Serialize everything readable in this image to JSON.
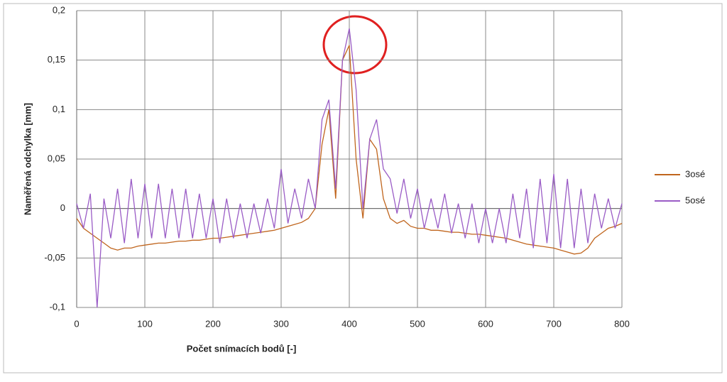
{
  "chart_data": {
    "type": "line",
    "y_label": "Naměřená odchylka  [mm]",
    "x_label": "Počet snímacích  bodů [-]",
    "x": [
      0,
      10,
      20,
      30,
      40,
      50,
      60,
      70,
      80,
      90,
      100,
      110,
      120,
      130,
      140,
      150,
      160,
      170,
      180,
      190,
      200,
      210,
      220,
      230,
      240,
      250,
      260,
      270,
      280,
      290,
      300,
      310,
      320,
      330,
      340,
      350,
      360,
      370,
      380,
      390,
      400,
      410,
      420,
      430,
      440,
      450,
      460,
      470,
      480,
      490,
      500,
      510,
      520,
      530,
      540,
      550,
      560,
      570,
      580,
      590,
      600,
      610,
      620,
      630,
      640,
      650,
      660,
      670,
      680,
      690,
      700,
      710,
      720,
      730,
      740,
      750,
      760,
      770,
      780,
      790,
      800
    ],
    "series": [
      {
        "name": "3osé",
        "color": "#c0651d",
        "values": [
          -0.01,
          -0.02,
          -0.025,
          -0.03,
          -0.035,
          -0.04,
          -0.042,
          -0.04,
          -0.04,
          -0.038,
          -0.037,
          -0.036,
          -0.035,
          -0.035,
          -0.034,
          -0.033,
          -0.033,
          -0.032,
          -0.032,
          -0.031,
          -0.03,
          -0.03,
          -0.029,
          -0.028,
          -0.027,
          -0.026,
          -0.025,
          -0.024,
          -0.023,
          -0.022,
          -0.02,
          -0.018,
          -0.016,
          -0.014,
          -0.01,
          0.0,
          0.065,
          0.1,
          0.01,
          0.15,
          0.165,
          0.05,
          -0.01,
          0.07,
          0.06,
          0.01,
          -0.01,
          -0.015,
          -0.012,
          -0.018,
          -0.02,
          -0.02,
          -0.022,
          -0.022,
          -0.023,
          -0.024,
          -0.024,
          -0.025,
          -0.026,
          -0.026,
          -0.027,
          -0.028,
          -0.029,
          -0.03,
          -0.032,
          -0.034,
          -0.036,
          -0.037,
          -0.038,
          -0.039,
          -0.04,
          -0.042,
          -0.044,
          -0.046,
          -0.045,
          -0.04,
          -0.03,
          -0.025,
          -0.02,
          -0.018,
          -0.015
        ]
      },
      {
        "name": "5osé",
        "color": "#9a5cc6",
        "values": [
          0.005,
          -0.02,
          0.015,
          -0.1,
          0.01,
          -0.03,
          0.02,
          -0.035,
          0.03,
          -0.03,
          0.025,
          -0.03,
          0.025,
          -0.03,
          0.02,
          -0.03,
          0.02,
          -0.03,
          0.015,
          -0.03,
          0.01,
          -0.035,
          0.01,
          -0.03,
          0.005,
          -0.03,
          0.005,
          -0.025,
          0.01,
          -0.02,
          0.04,
          -0.015,
          0.02,
          -0.01,
          0.03,
          0.0,
          0.09,
          0.11,
          0.02,
          0.15,
          0.182,
          0.12,
          0.0,
          0.07,
          0.09,
          0.04,
          0.03,
          -0.005,
          0.03,
          -0.01,
          0.02,
          -0.02,
          0.01,
          -0.02,
          0.015,
          -0.025,
          0.005,
          -0.03,
          0.005,
          -0.035,
          0.0,
          -0.035,
          0.0,
          -0.035,
          0.015,
          -0.03,
          0.02,
          -0.04,
          0.03,
          -0.035,
          0.035,
          -0.04,
          0.03,
          -0.04,
          0.02,
          -0.035,
          0.015,
          -0.02,
          0.01,
          -0.02,
          0.005
        ]
      }
    ],
    "xlim": [
      0,
      800
    ],
    "xticks": [
      0,
      100,
      200,
      300,
      400,
      500,
      600,
      700,
      800
    ],
    "ylim": [
      -0.1,
      0.2
    ],
    "yticks": [
      {
        "value": -0.1,
        "label": "-0,1"
      },
      {
        "value": -0.05,
        "label": "-0,05"
      },
      0,
      {
        "value": 0.05,
        "label": "0,05"
      },
      {
        "value": 0.1,
        "label": "0,1"
      },
      {
        "value": 0.15,
        "label": "0,15"
      },
      {
        "value": 0.2,
        "label": "0,2"
      }
    ],
    "grid": true,
    "legend": "right"
  }
}
